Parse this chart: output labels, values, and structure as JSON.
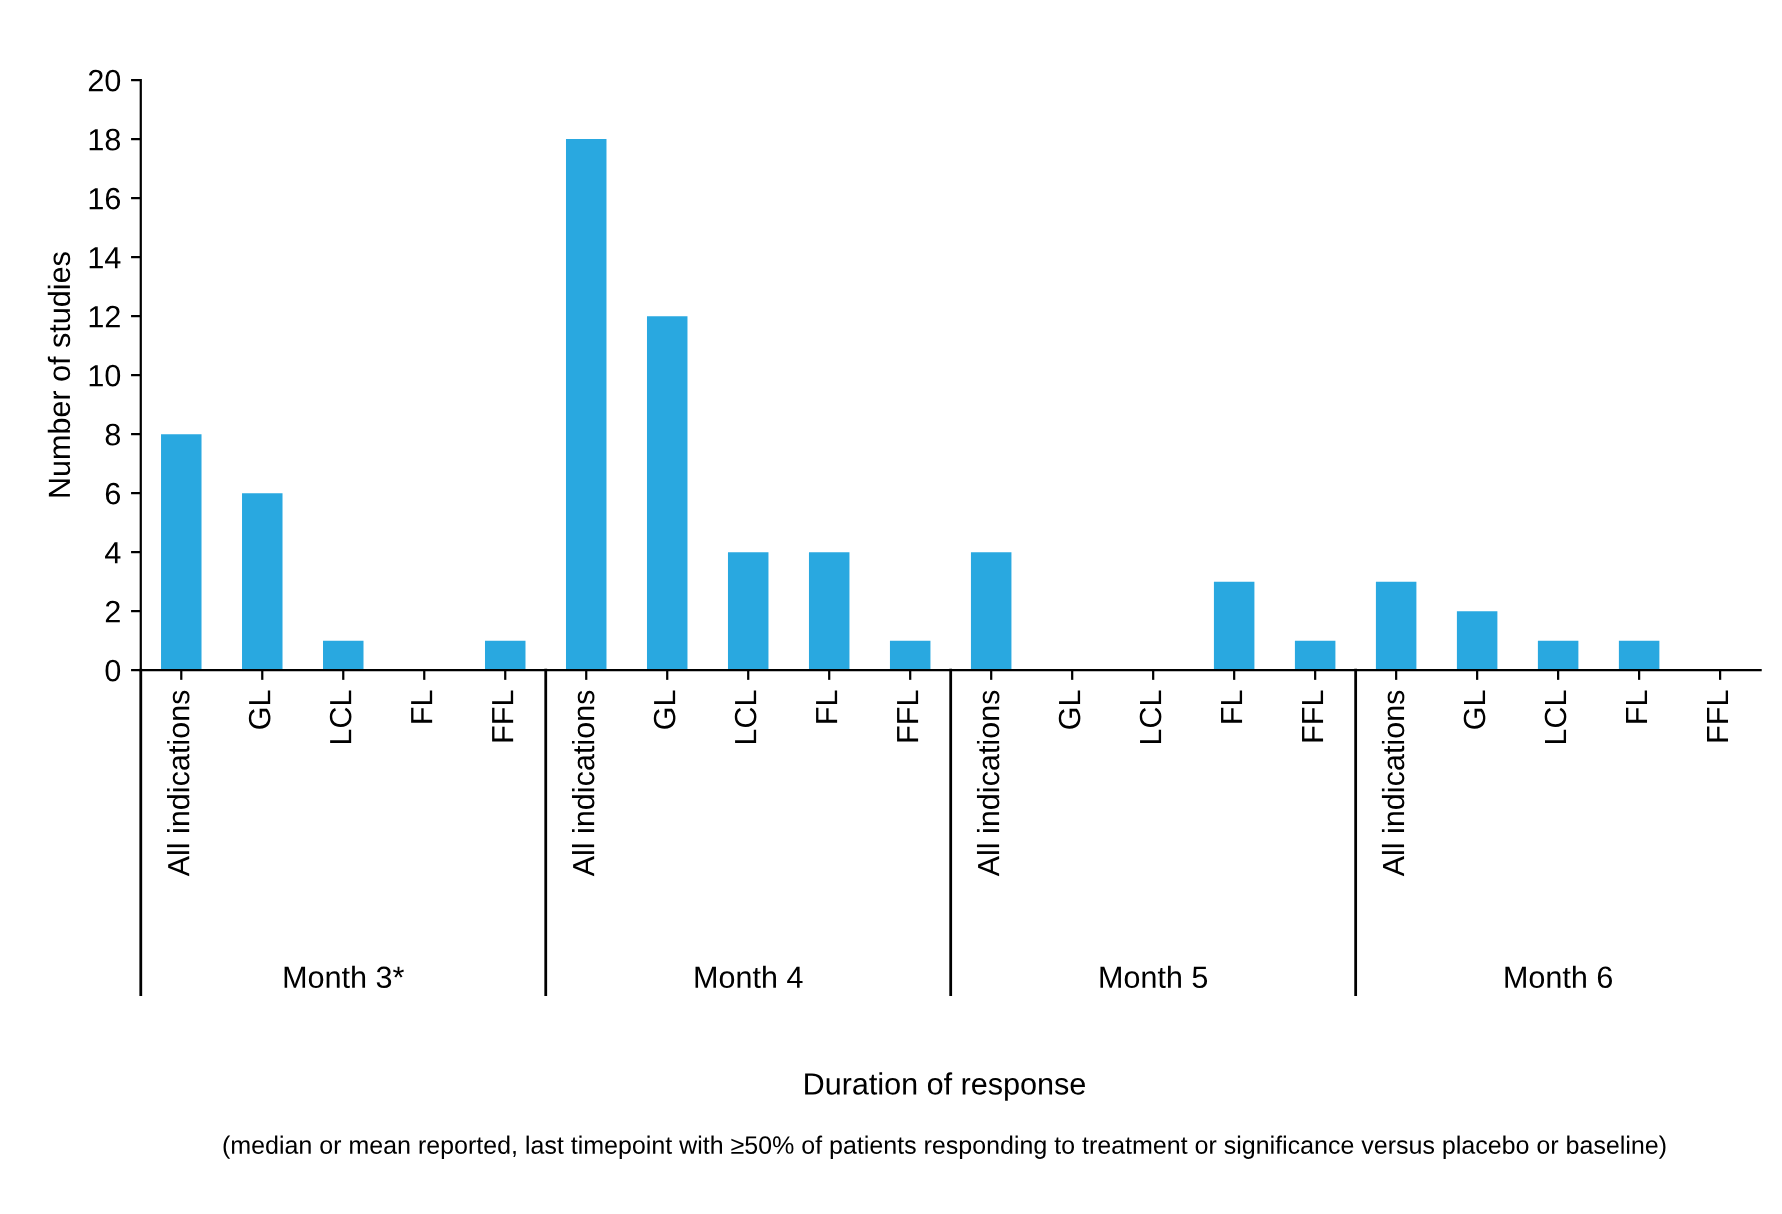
{
  "chart_data": {
    "type": "bar",
    "ylabel": "Number of studies",
    "categories": [
      "All indications",
      "GL",
      "LCL",
      "FL",
      "FFL",
      "All indications",
      "GL",
      "LCL",
      "FL",
      "FFL",
      "All indications",
      "GL",
      "LCL",
      "FL",
      "FFL",
      "All indications",
      "GL",
      "LCL",
      "FL",
      "FFL"
    ],
    "values": [
      8,
      6,
      1,
      0,
      1,
      18,
      12,
      4,
      4,
      1,
      4,
      0,
      0,
      3,
      1,
      3,
      2,
      1,
      1,
      0
    ],
    "color": "#29a8e0",
    "ylim": [
      0,
      20
    ],
    "yticks": [
      0,
      2,
      4,
      6,
      8,
      10,
      12,
      14,
      16,
      18,
      20
    ],
    "grid": false,
    "annotations": [
      "Month 3*",
      "Month 4",
      "Month 5",
      "Month 6",
      "Duration of response",
      "(median or mean reported, last timepoint with ≥50% of patients responding to treatment or significance versus placebo or baseline)"
    ]
  }
}
